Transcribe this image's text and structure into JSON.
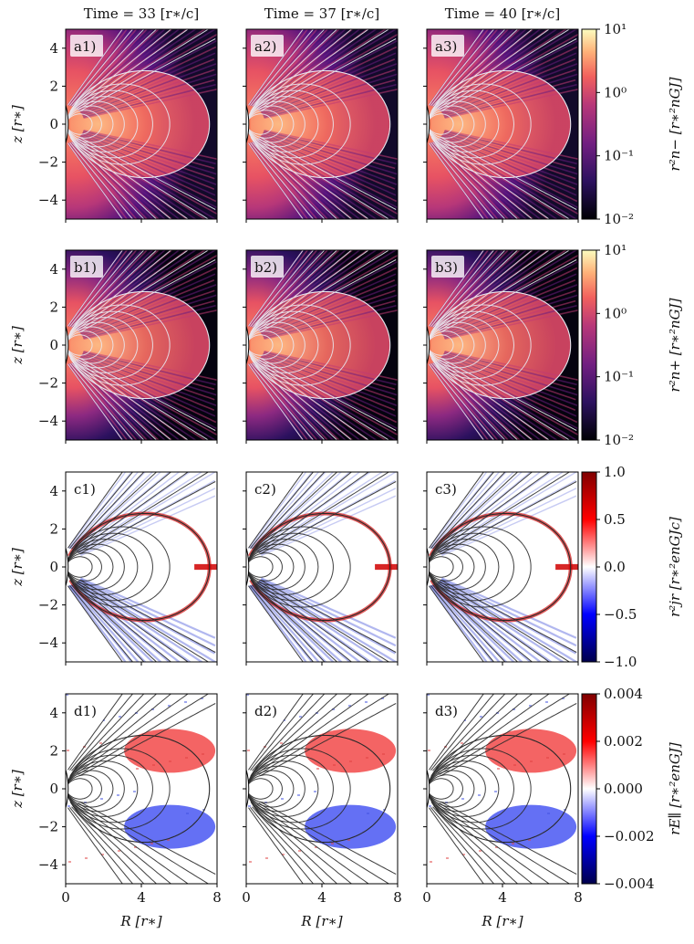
{
  "figure": {
    "columns": [
      {
        "title": "Time = 33 [r∗/c]"
      },
      {
        "title": "Time = 37 [r∗/c]"
      },
      {
        "title": "Time = 40 [r∗/c]"
      }
    ],
    "rows": [
      {
        "id": "a",
        "ylabel": "z [r∗]",
        "colorbar_label": "r²n− [r∗²nGJ]",
        "colormap": "magma",
        "scale": "log",
        "ticks": [
          "10¹",
          "10⁰",
          "10⁻¹",
          "10⁻²"
        ],
        "labels": [
          "a1)",
          "a2)",
          "a3)"
        ]
      },
      {
        "id": "b",
        "ylabel": "z [r∗]",
        "colorbar_label": "r²n+ [r∗²nGJ]",
        "colormap": "magma",
        "scale": "log",
        "ticks": [
          "10¹",
          "10⁰",
          "10⁻¹",
          "10⁻²"
        ],
        "labels": [
          "b1)",
          "b2)",
          "b3)"
        ]
      },
      {
        "id": "c",
        "ylabel": "z [r∗]",
        "colorbar_label": "r²jr [r∗²enGJc]",
        "colormap": "seismic",
        "scale": "linear",
        "ticks": [
          "1.0",
          "0.5",
          "0.0",
          "−0.5",
          "−1.0"
        ],
        "labels": [
          "c1)",
          "c2)",
          "c3)"
        ]
      },
      {
        "id": "d",
        "ylabel": "z [r∗]",
        "colorbar_label": "rE∥ [r∗²enGJ]",
        "colormap": "seismic",
        "scale": "linear",
        "ticks": [
          "0.004",
          "0.002",
          "0.000",
          "−0.002",
          "−0.004"
        ],
        "labels": [
          "d1)",
          "d2)",
          "d3)"
        ]
      }
    ],
    "xlabel": "R [r∗]",
    "x_ticks": [
      "0",
      "4",
      "8"
    ],
    "y_ticks": [
      "4",
      "2",
      "0",
      "−2",
      "−4"
    ],
    "x_range": [
      0,
      8
    ],
    "y_range": [
      -5,
      5
    ],
    "colors": {
      "magma_bg": "#0d0829",
      "field_line_light": "#e8e8f0",
      "field_line_dark": "#2a2a2a",
      "positive": "#c00000",
      "negative": "#1020c0"
    }
  }
}
